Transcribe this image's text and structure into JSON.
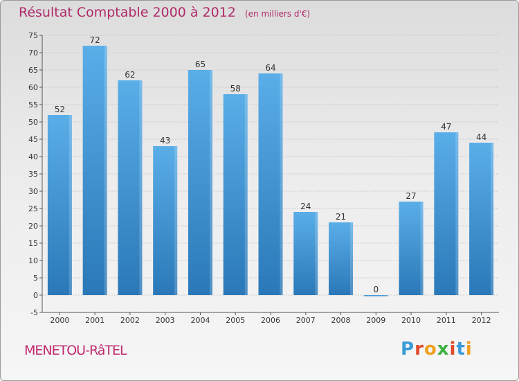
{
  "chart_data": {
    "type": "bar",
    "title": "Résultat Comptable 2000 à 2012",
    "subtitle": "(en milliers d'€)",
    "categories": [
      "2000",
      "2001",
      "2002",
      "2003",
      "2004",
      "2005",
      "2006",
      "2007",
      "2008",
      "2009",
      "2010",
      "2011",
      "2012"
    ],
    "values": [
      52,
      72,
      62,
      43,
      65,
      58,
      64,
      24,
      21,
      0,
      27,
      47,
      44
    ],
    "ylim": [
      -5,
      75
    ],
    "yticks": [
      -5,
      0,
      5,
      10,
      15,
      20,
      25,
      30,
      35,
      40,
      45,
      50,
      55,
      60,
      65,
      70,
      75
    ],
    "grid": true,
    "xlabel": "",
    "ylabel": ""
  },
  "footer": {
    "commune": "MENETOU-RâTEL",
    "brand_letters": [
      "P",
      "r",
      "o",
      "x",
      "i",
      "t",
      "i"
    ]
  },
  "colors": {
    "bar_top": "#5aaee8",
    "bar_bottom": "#2a78b8",
    "title": "#b02a6a",
    "brand": [
      "#3a9ad8",
      "#e04a2a",
      "#f0a020",
      "#3ab040",
      "#e04a2a",
      "#3a9ad8",
      "#f0a020"
    ]
  }
}
